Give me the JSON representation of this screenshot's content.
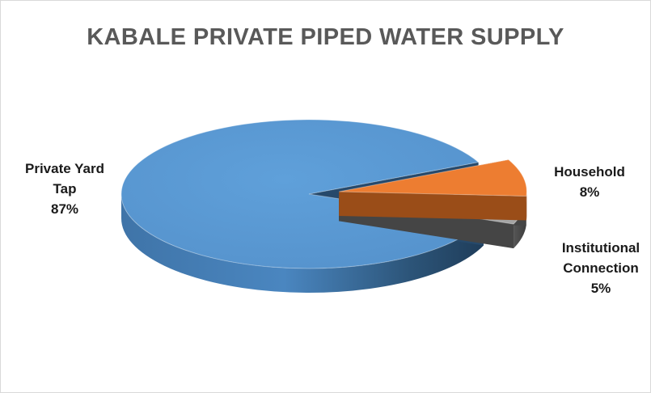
{
  "chart_data": {
    "type": "pie",
    "title": "KABALE PRIVATE PIPED WATER SUPPLY",
    "slices": [
      {
        "label": [
          "Private Yard",
          "Tap"
        ],
        "value": 87,
        "display": "87%",
        "color": "#5b9bd5",
        "exploded": false
      },
      {
        "label": [
          "Household"
        ],
        "value": 8,
        "display": "8%",
        "color": "#ed7d31",
        "exploded": true
      },
      {
        "label": [
          "Institutional",
          "Connection"
        ],
        "value": 5,
        "display": "5%",
        "color": "#a5a5a5",
        "exploded": true
      }
    ],
    "style": "3d-exploded",
    "legend": "none",
    "data_labels": "outside"
  }
}
